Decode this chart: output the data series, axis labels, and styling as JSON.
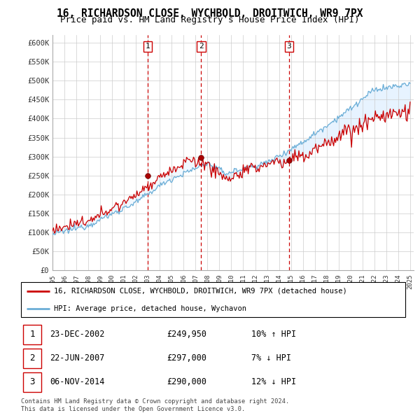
{
  "title": "16, RICHARDSON CLOSE, WYCHBOLD, DROITWICH, WR9 7PX",
  "subtitle": "Price paid vs. HM Land Registry's House Price Index (HPI)",
  "y_ticks": [
    0,
    50000,
    100000,
    150000,
    200000,
    250000,
    300000,
    350000,
    400000,
    450000,
    500000,
    550000,
    600000
  ],
  "y_tick_labels": [
    "£0",
    "£50K",
    "£100K",
    "£150K",
    "£200K",
    "£250K",
    "£300K",
    "£350K",
    "£400K",
    "£450K",
    "£500K",
    "£550K",
    "£600K"
  ],
  "sale_year_floats": [
    2002.97,
    2007.47,
    2014.84
  ],
  "sale_prices": [
    249950,
    297000,
    290000
  ],
  "sale_labels": [
    "1",
    "2",
    "3"
  ],
  "legend_line1": "16, RICHARDSON CLOSE, WYCHBOLD, DROITWICH, WR9 7PX (detached house)",
  "legend_line2": "HPI: Average price, detached house, Wychavon",
  "table_rows": [
    {
      "label": "1",
      "date": "23-DEC-2002",
      "price": "£249,950",
      "change": "10% ↑ HPI"
    },
    {
      "label": "2",
      "date": "22-JUN-2007",
      "price": "£297,000",
      "change": "7% ↓ HPI"
    },
    {
      "label": "3",
      "date": "06-NOV-2014",
      "price": "£290,000",
      "change": "12% ↓ HPI"
    }
  ],
  "footer": "Contains HM Land Registry data © Crown copyright and database right 2024.\nThis data is licensed under the Open Government Licence v3.0.",
  "sale_color": "#cc0000",
  "hpi_color": "#6baed6",
  "fill_color": "#ddeeff",
  "dashed_line_color": "#cc0000",
  "background_color": "#ffffff",
  "grid_color": "#cccccc"
}
